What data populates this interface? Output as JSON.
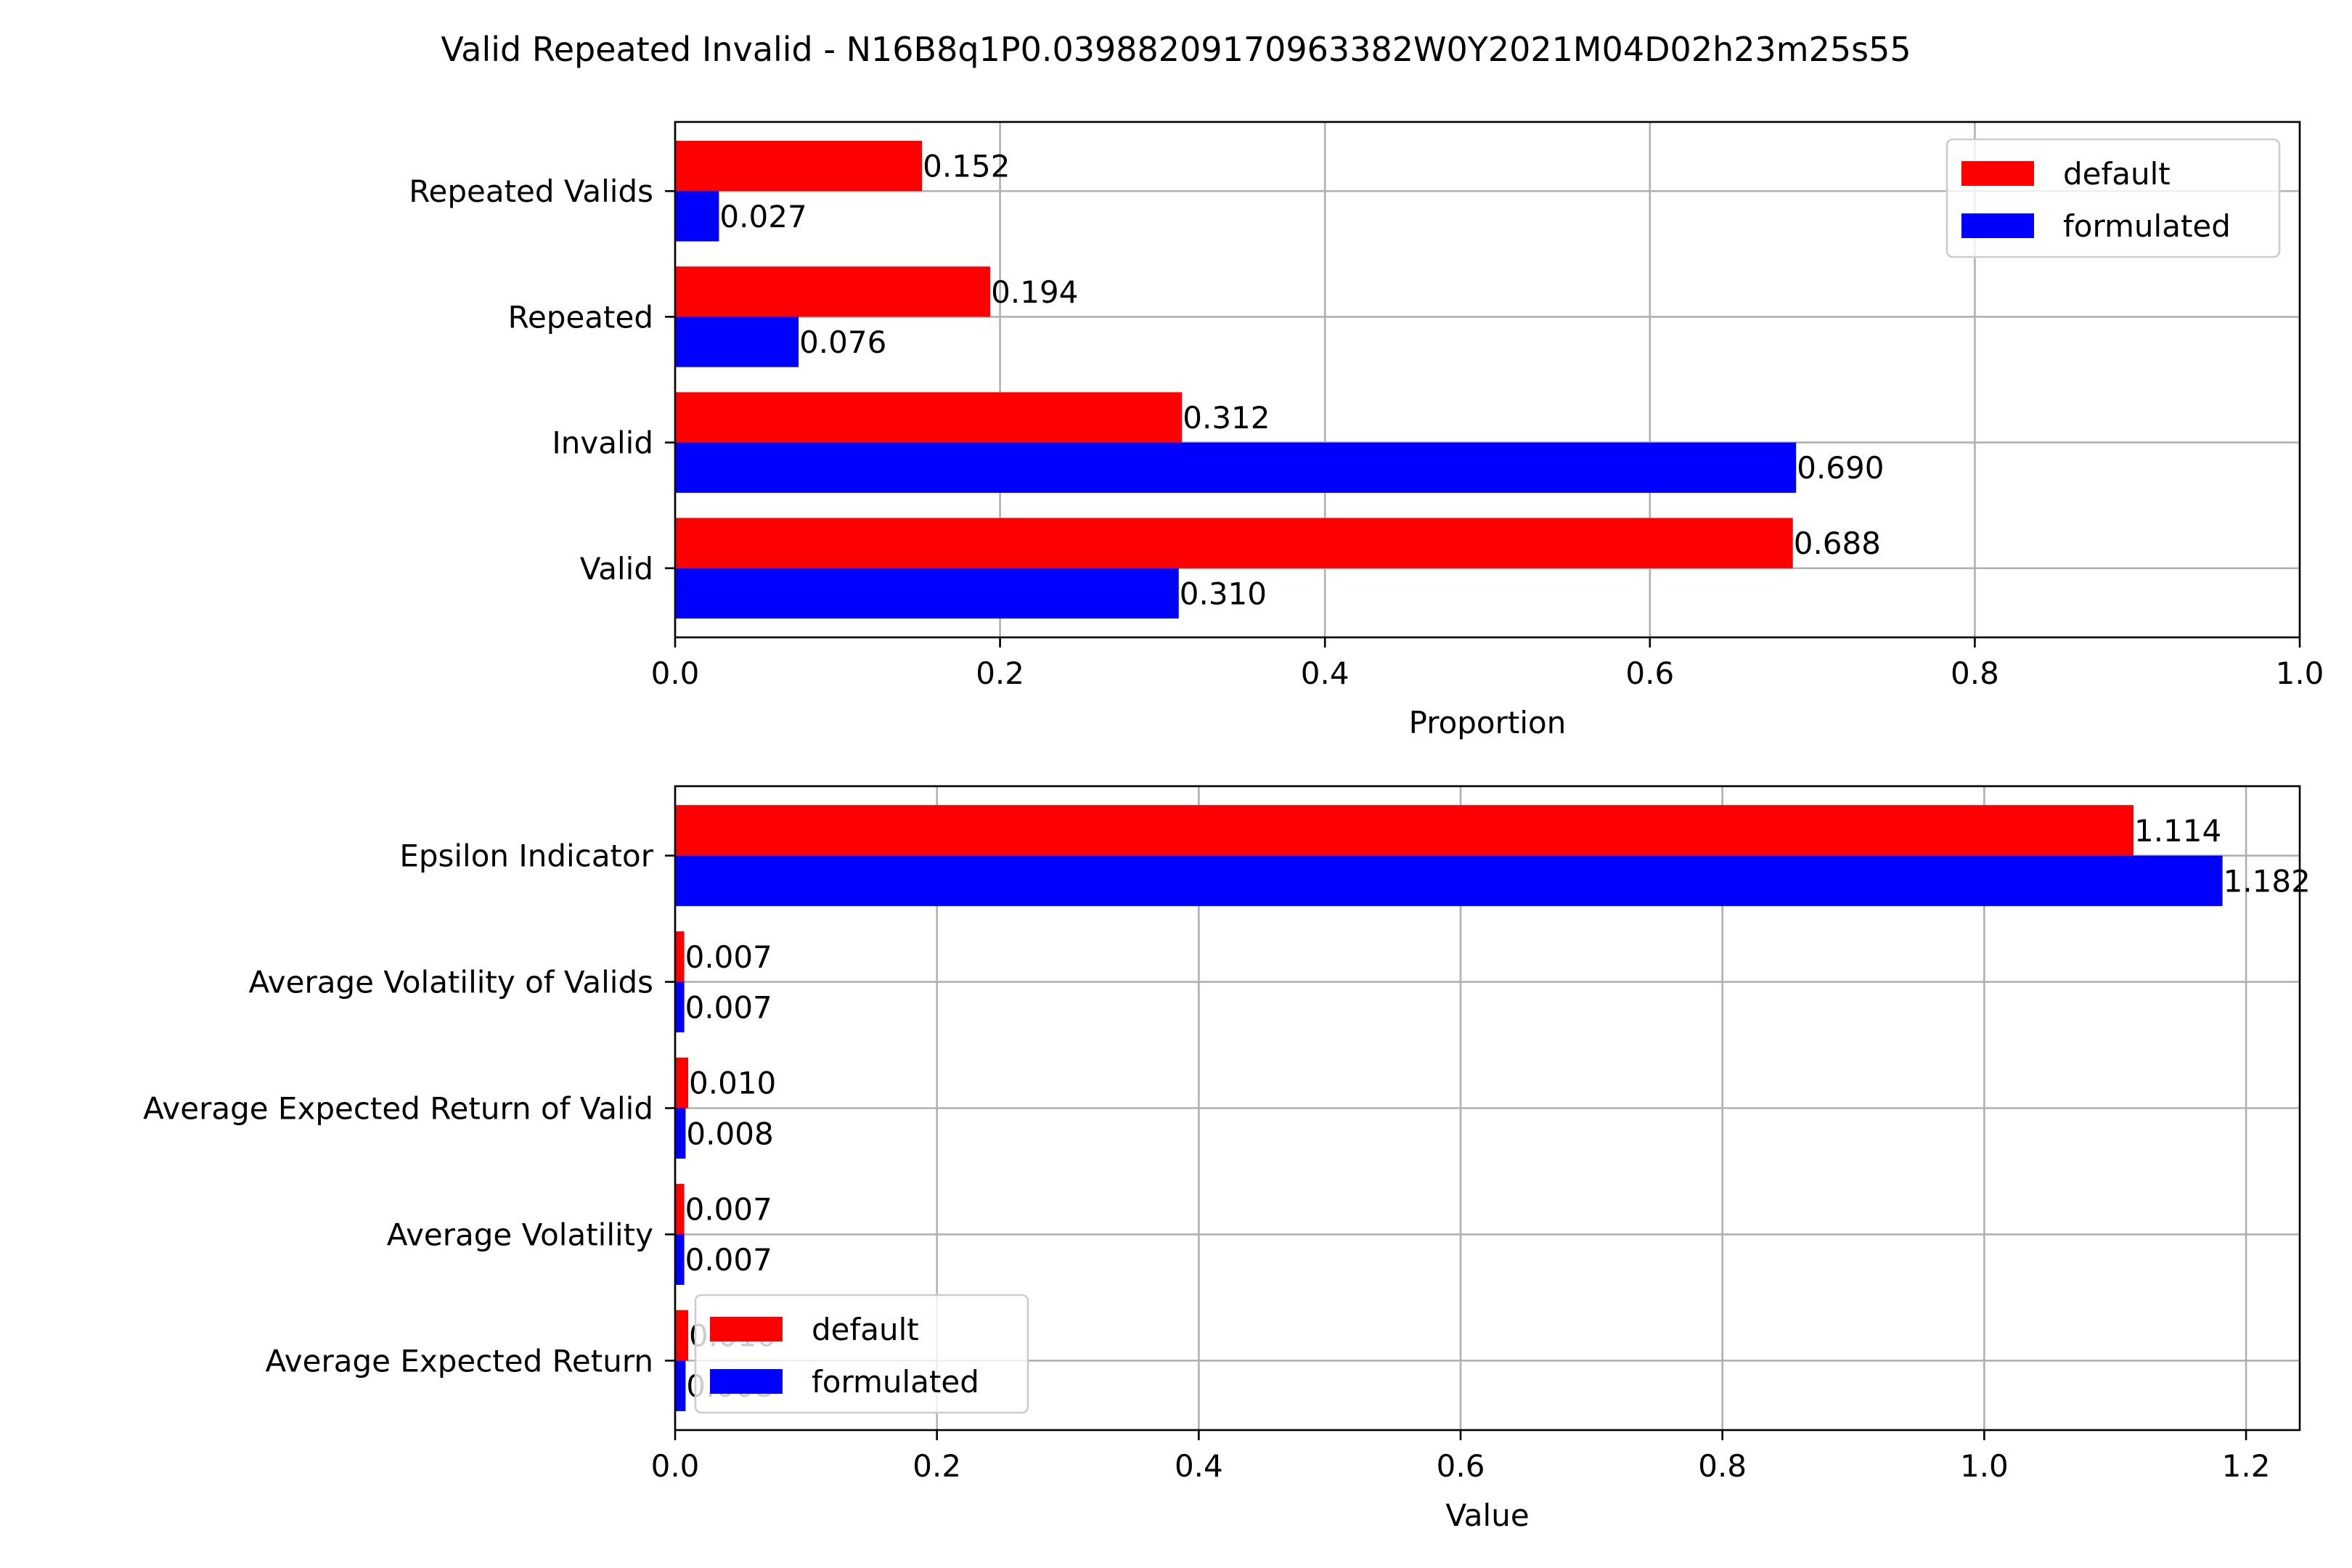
{
  "title": "Valid Repeated Invalid - N16B8q1P0.03988209170963382W0Y2021M04D02h23m25s55",
  "colors": {
    "default": "#ff0000",
    "formulated": "#0000ff"
  },
  "chart_data": [
    {
      "type": "bar",
      "orientation": "horizontal",
      "categories": [
        "Valid",
        "Invalid",
        "Repeated",
        "Repeated Valids"
      ],
      "series": [
        {
          "name": "default",
          "values": [
            0.688,
            0.312,
            0.194,
            0.152
          ],
          "labels": [
            "0.688",
            "0.312",
            "0.194",
            "0.152"
          ]
        },
        {
          "name": "formulated",
          "values": [
            0.31,
            0.69,
            0.076,
            0.027
          ],
          "labels": [
            "0.310",
            "0.690",
            "0.076",
            "0.027"
          ]
        }
      ],
      "xlabel": "Proportion",
      "ylabel": "",
      "xlim": [
        0,
        1.0
      ],
      "xticks": [
        0.0,
        0.2,
        0.4,
        0.6,
        0.8,
        1.0
      ],
      "xtick_labels": [
        "0.0",
        "0.2",
        "0.4",
        "0.6",
        "0.8",
        "1.0"
      ],
      "grid": true,
      "legend": {
        "placement": "top-right",
        "entries": [
          "default",
          "formulated"
        ]
      }
    },
    {
      "type": "bar",
      "orientation": "horizontal",
      "categories": [
        "Average Expected Return",
        "Average Volatility",
        "Average Expected Return of Valid",
        "Average Volatility of Valids",
        "Epsilon Indicator"
      ],
      "series": [
        {
          "name": "default",
          "values": [
            0.01,
            0.007,
            0.01,
            0.007,
            1.114
          ],
          "labels": [
            "0.010",
            "0.007",
            "0.010",
            "0.007",
            "1.114"
          ]
        },
        {
          "name": "formulated",
          "values": [
            0.008,
            0.007,
            0.008,
            0.007,
            1.182
          ],
          "labels": [
            "0.008",
            "0.007",
            "0.008",
            "0.007",
            "1.182"
          ]
        }
      ],
      "xlabel": "Value",
      "ylabel": "",
      "xlim": [
        0,
        1.241
      ],
      "xticks": [
        0.0,
        0.2,
        0.4,
        0.6,
        0.8,
        1.0,
        1.2
      ],
      "xtick_labels": [
        "0.0",
        "0.2",
        "0.4",
        "0.6",
        "0.8",
        "1.0",
        "1.2"
      ],
      "grid": true,
      "legend": {
        "placement": "lower-left",
        "entries": [
          "default",
          "formulated"
        ]
      }
    }
  ]
}
